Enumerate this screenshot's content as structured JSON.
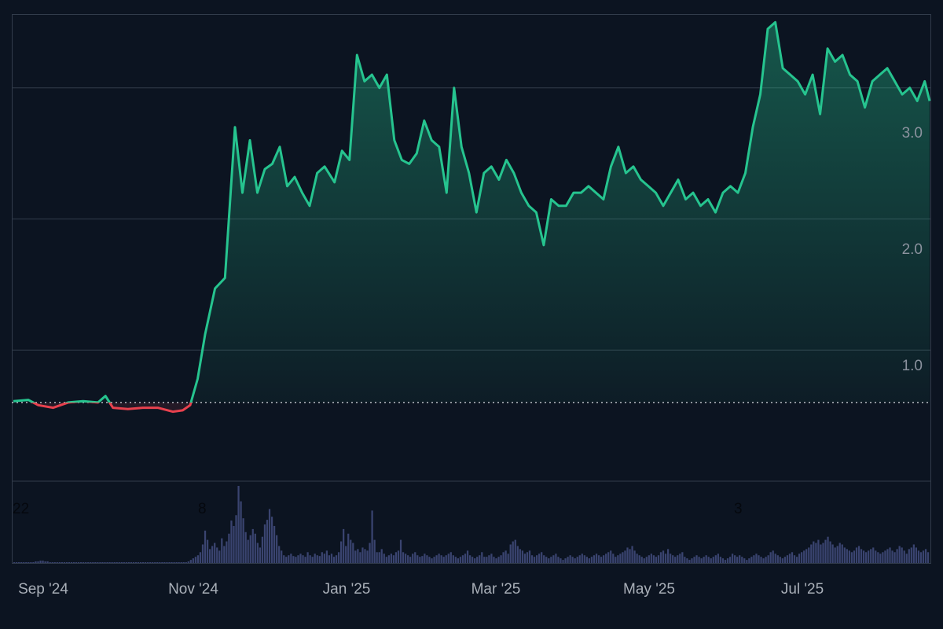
{
  "chart_data": {
    "type": "area",
    "title": "",
    "xlabel": "",
    "ylabel": "",
    "x_range": [
      "2024-08-27",
      "2025-08-30"
    ],
    "ylim": [
      0,
      3.55
    ],
    "y_ticks": [
      "1.0",
      "2.0",
      "3.0"
    ],
    "x_ticks": [
      "Sep '24",
      "Nov '24",
      "Jan '25",
      "Mar '25",
      "May '25",
      "Jul '25"
    ],
    "baseline_value": 0.6,
    "markers": [
      "22",
      "8",
      "3"
    ],
    "grid": true,
    "legend": "none",
    "colors": {
      "above_baseline": "#26c48f",
      "below_baseline": "#e8414e",
      "volume": "#3a4470",
      "background": "#0c1421",
      "grid": "#323c4b"
    },
    "series": [
      {
        "x": [
          "2024-08-27",
          "2024-09-02",
          "2024-09-06",
          "2024-09-12",
          "2024-09-18",
          "2024-09-24",
          "2024-09-30",
          "2024-10-03",
          "2024-10-06",
          "2024-10-12",
          "2024-10-18",
          "2024-10-24",
          "2024-10-30",
          "2024-11-03",
          "2024-11-06",
          "2024-11-09",
          "2024-11-12",
          "2024-11-16",
          "2024-11-20",
          "2024-11-24",
          "2024-11-27",
          "2024-11-30",
          "2024-12-03",
          "2024-12-06",
          "2024-12-09",
          "2024-12-12",
          "2024-12-15",
          "2024-12-18",
          "2024-12-21",
          "2024-12-24",
          "2024-12-27",
          "2024-12-30",
          "2025-01-03",
          "2025-01-06",
          "2025-01-09",
          "2025-01-12",
          "2025-01-15",
          "2025-01-18",
          "2025-01-21",
          "2025-01-24",
          "2025-01-27",
          "2025-01-30",
          "2025-02-02",
          "2025-02-05",
          "2025-02-08",
          "2025-02-11",
          "2025-02-14",
          "2025-02-17",
          "2025-02-20",
          "2025-02-23",
          "2025-02-26",
          "2025-03-01",
          "2025-03-04",
          "2025-03-07",
          "2025-03-10",
          "2025-03-13",
          "2025-03-16",
          "2025-03-19",
          "2025-03-22",
          "2025-03-25",
          "2025-03-28",
          "2025-03-31",
          "2025-04-03",
          "2025-04-06",
          "2025-04-09",
          "2025-04-12",
          "2025-04-15",
          "2025-04-18",
          "2025-04-21",
          "2025-04-24",
          "2025-04-27",
          "2025-04-30",
          "2025-05-03",
          "2025-05-06",
          "2025-05-09",
          "2025-05-12",
          "2025-05-15",
          "2025-05-18",
          "2025-05-21",
          "2025-05-24",
          "2025-05-27",
          "2025-05-30",
          "2025-06-02",
          "2025-06-05",
          "2025-06-08",
          "2025-06-11",
          "2025-06-14",
          "2025-06-17",
          "2025-06-20",
          "2025-06-23",
          "2025-06-26",
          "2025-06-29",
          "2025-07-02",
          "2025-07-05",
          "2025-07-08",
          "2025-07-11",
          "2025-07-14",
          "2025-07-17",
          "2025-07-20",
          "2025-07-23",
          "2025-07-26",
          "2025-07-29",
          "2025-08-01",
          "2025-08-04",
          "2025-08-07",
          "2025-08-10",
          "2025-08-13",
          "2025-08-16",
          "2025-08-19",
          "2025-08-22",
          "2025-08-25",
          "2025-08-28",
          "2025-08-30"
        ],
        "values": [
          0.61,
          0.62,
          0.58,
          0.56,
          0.6,
          0.61,
          0.6,
          0.65,
          0.56,
          0.55,
          0.56,
          0.56,
          0.53,
          0.54,
          0.58,
          0.78,
          1.12,
          1.47,
          1.55,
          2.7,
          2.2,
          2.6,
          2.2,
          2.38,
          2.42,
          2.55,
          2.25,
          2.32,
          2.2,
          2.1,
          2.35,
          2.4,
          2.28,
          2.52,
          2.45,
          3.25,
          3.05,
          3.1,
          3.0,
          3.1,
          2.6,
          2.45,
          2.42,
          2.5,
          2.75,
          2.6,
          2.55,
          2.2,
          3.0,
          2.55,
          2.35,
          2.05,
          2.35,
          2.4,
          2.3,
          2.45,
          2.35,
          2.2,
          2.1,
          2.05,
          1.8,
          2.15,
          2.1,
          2.1,
          2.2,
          2.2,
          2.25,
          2.2,
          2.15,
          2.4,
          2.55,
          2.35,
          2.4,
          2.3,
          2.25,
          2.2,
          2.1,
          2.2,
          2.3,
          2.15,
          2.2,
          2.1,
          2.15,
          2.05,
          2.2,
          2.25,
          2.2,
          2.35,
          2.7,
          2.95,
          3.45,
          3.5,
          3.15,
          3.1,
          3.05,
          2.95,
          3.1,
          2.8,
          3.3,
          3.2,
          3.25,
          3.1,
          3.05,
          2.85,
          3.05,
          3.1,
          3.15,
          3.05,
          2.95,
          3.0,
          2.9,
          3.05,
          2.9
        ]
      }
    ],
    "volume": [
      1,
      1,
      1,
      1,
      1,
      1,
      1,
      1,
      1,
      2,
      2,
      3,
      3,
      2,
      2,
      1,
      1,
      1,
      1,
      1,
      1,
      1,
      1,
      1,
      1,
      1,
      1,
      1,
      1,
      1,
      1,
      1,
      1,
      1,
      1,
      1,
      1,
      1,
      1,
      1,
      1,
      1,
      1,
      1,
      1,
      1,
      1,
      1,
      1,
      1,
      1,
      1,
      1,
      1,
      1,
      1,
      1,
      1,
      1,
      1,
      1,
      1,
      1,
      1,
      1,
      1,
      1,
      1,
      1,
      1,
      1,
      1,
      1,
      2,
      4,
      6,
      8,
      10,
      14,
      24,
      42,
      30,
      18,
      22,
      26,
      20,
      16,
      32,
      22,
      28,
      38,
      55,
      48,
      62,
      100,
      80,
      58,
      40,
      30,
      36,
      44,
      38,
      26,
      20,
      34,
      50,
      56,
      70,
      60,
      48,
      36,
      22,
      16,
      10,
      8,
      10,
      12,
      9,
      8,
      10,
      12,
      10,
      8,
      14,
      10,
      8,
      12,
      10,
      9,
      14,
      12,
      16,
      10,
      12,
      8,
      10,
      14,
      28,
      44,
      22,
      38,
      30,
      26,
      16,
      18,
      14,
      20,
      18,
      16,
      26,
      68,
      30,
      14,
      14,
      18,
      12,
      8,
      10,
      12,
      10,
      14,
      16,
      30,
      14,
      12,
      10,
      8,
      12,
      14,
      10,
      8,
      9,
      12,
      10,
      8,
      6,
      8,
      10,
      12,
      10,
      8,
      10,
      12,
      14,
      10,
      8,
      6,
      8,
      10,
      12,
      16,
      10,
      8,
      6,
      8,
      10,
      14,
      8,
      8,
      10,
      12,
      8,
      6,
      8,
      10,
      14,
      16,
      12,
      24,
      28,
      30,
      22,
      18,
      16,
      12,
      14,
      16,
      10,
      8,
      10,
      12,
      14,
      10,
      8,
      6,
      8,
      10,
      12,
      8,
      6,
      4,
      6,
      8,
      10,
      8,
      6,
      8,
      10,
      12,
      10,
      8,
      6,
      8,
      10,
      12,
      10,
      8,
      10,
      12,
      14,
      16,
      12,
      8,
      10,
      12,
      14,
      16,
      20,
      18,
      22,
      16,
      12,
      10,
      8,
      6,
      8,
      10,
      12,
      10,
      8,
      10,
      14,
      16,
      12,
      18,
      12,
      10,
      8,
      10,
      12,
      14,
      8,
      6,
      4,
      6,
      8,
      10,
      8,
      6,
      8,
      10,
      8,
      6,
      8,
      10,
      12,
      8,
      6,
      4,
      6,
      8,
      12,
      10,
      8,
      10,
      8,
      6,
      4,
      6,
      8,
      10,
      12,
      10,
      8,
      6,
      8,
      10,
      14,
      16,
      12,
      10,
      8,
      6,
      8,
      10,
      12,
      14,
      10,
      8,
      12,
      14,
      16,
      18,
      20,
      24,
      28,
      26,
      30,
      24,
      26,
      30,
      34,
      28,
      24,
      20,
      22,
      26,
      24,
      20,
      18,
      16,
      14,
      16,
      20,
      22,
      18,
      16,
      14,
      16,
      18,
      20,
      16,
      14,
      12,
      14,
      16,
      18,
      20,
      16,
      14,
      18,
      22,
      20,
      16,
      12,
      18,
      20,
      24,
      20,
      16,
      14,
      16,
      18,
      14
    ]
  }
}
